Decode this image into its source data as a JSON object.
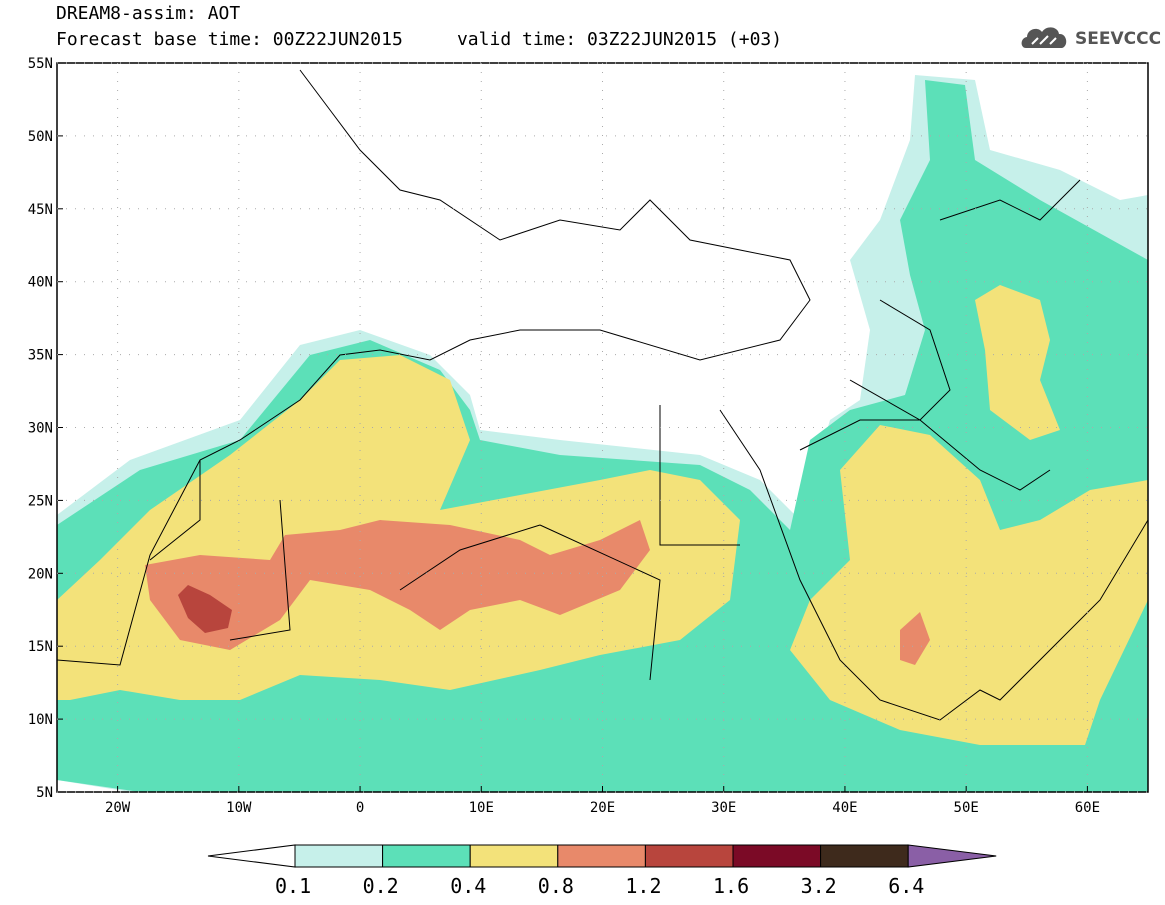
{
  "title": {
    "line1": "DREAM8-assim: AOT",
    "line2": "Forecast base time: 00Z22JUN2015     valid time: 03Z22JUN2015 (+03)"
  },
  "logo": {
    "text": "SEEVCCC",
    "icon": "cloud-icon"
  },
  "map": {
    "type": "contour-fill",
    "lon_range": [
      -25,
      65
    ],
    "lat_range": [
      5,
      55
    ],
    "x_ticks": [
      "20W",
      "10W",
      "0",
      "10E",
      "20E",
      "30E",
      "40E",
      "50E",
      "60E"
    ],
    "y_ticks": [
      "55N",
      "50N",
      "45N",
      "40N",
      "35N",
      "30N",
      "25N",
      "20N",
      "15N",
      "10N",
      "5N"
    ]
  },
  "colorbar": {
    "labels": [
      "0.1",
      "0.2",
      "0.4",
      "0.8",
      "1.2",
      "1.6",
      "3.2",
      "6.4"
    ],
    "colors": [
      "#c6f0ea",
      "#5ce0b8",
      "#f3e27a",
      "#e8896a",
      "#b8453d",
      "#7b0a26",
      "#3e2a1c"
    ],
    "under_color": "#ffffff",
    "over_color": "#8a5fa6"
  }
}
